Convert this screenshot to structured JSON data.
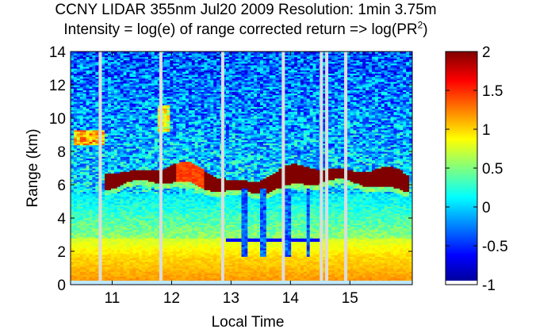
{
  "chart_data": {
    "type": "heatmap",
    "title": "CCNY LIDAR 355nm Jul20 2009 Resolution: 1min 3.75m",
    "subtitle_prefix": "Intensity = log(e) of range corrected return => log(PR",
    "subtitle_sup": "2",
    "subtitle_suffix": ")",
    "xlabel": "Local Time",
    "ylabel": "Range (km)",
    "xlim": [
      10.3,
      16.05
    ],
    "ylim": [
      0,
      14
    ],
    "xticks": [
      11,
      12,
      13,
      14,
      15
    ],
    "xtick_labels": [
      "11",
      "12",
      "13",
      "14",
      "15"
    ],
    "yticks": [
      0,
      2,
      4,
      6,
      8,
      10,
      12,
      14
    ],
    "ytick_labels": [
      "0",
      "2",
      "4",
      "6",
      "8",
      "10",
      "12",
      "14"
    ],
    "colorbar": {
      "range": [
        -1,
        2
      ],
      "ticks": [
        -1,
        -0.5,
        0,
        0.5,
        1,
        1.5,
        2
      ],
      "tick_labels": [
        "-1",
        "-0.5",
        "0",
        "0.5",
        "1",
        "1.5",
        "2"
      ],
      "colormap": "jet"
    },
    "data_gaps_local_time": [
      10.8,
      11.82,
      12.86,
      13.88,
      14.52,
      14.61,
      14.93
    ],
    "features": {
      "boundary_layer_km": [
        0,
        1.5
      ],
      "cirrus_layer_km": [
        5.8,
        7.4
      ],
      "cirrus_time_range": [
        10.9,
        16.0
      ],
      "cirrus_peak_value": 2,
      "residual_layer_km": 2.7,
      "residual_time_range": [
        12.9,
        14.55
      ]
    }
  }
}
